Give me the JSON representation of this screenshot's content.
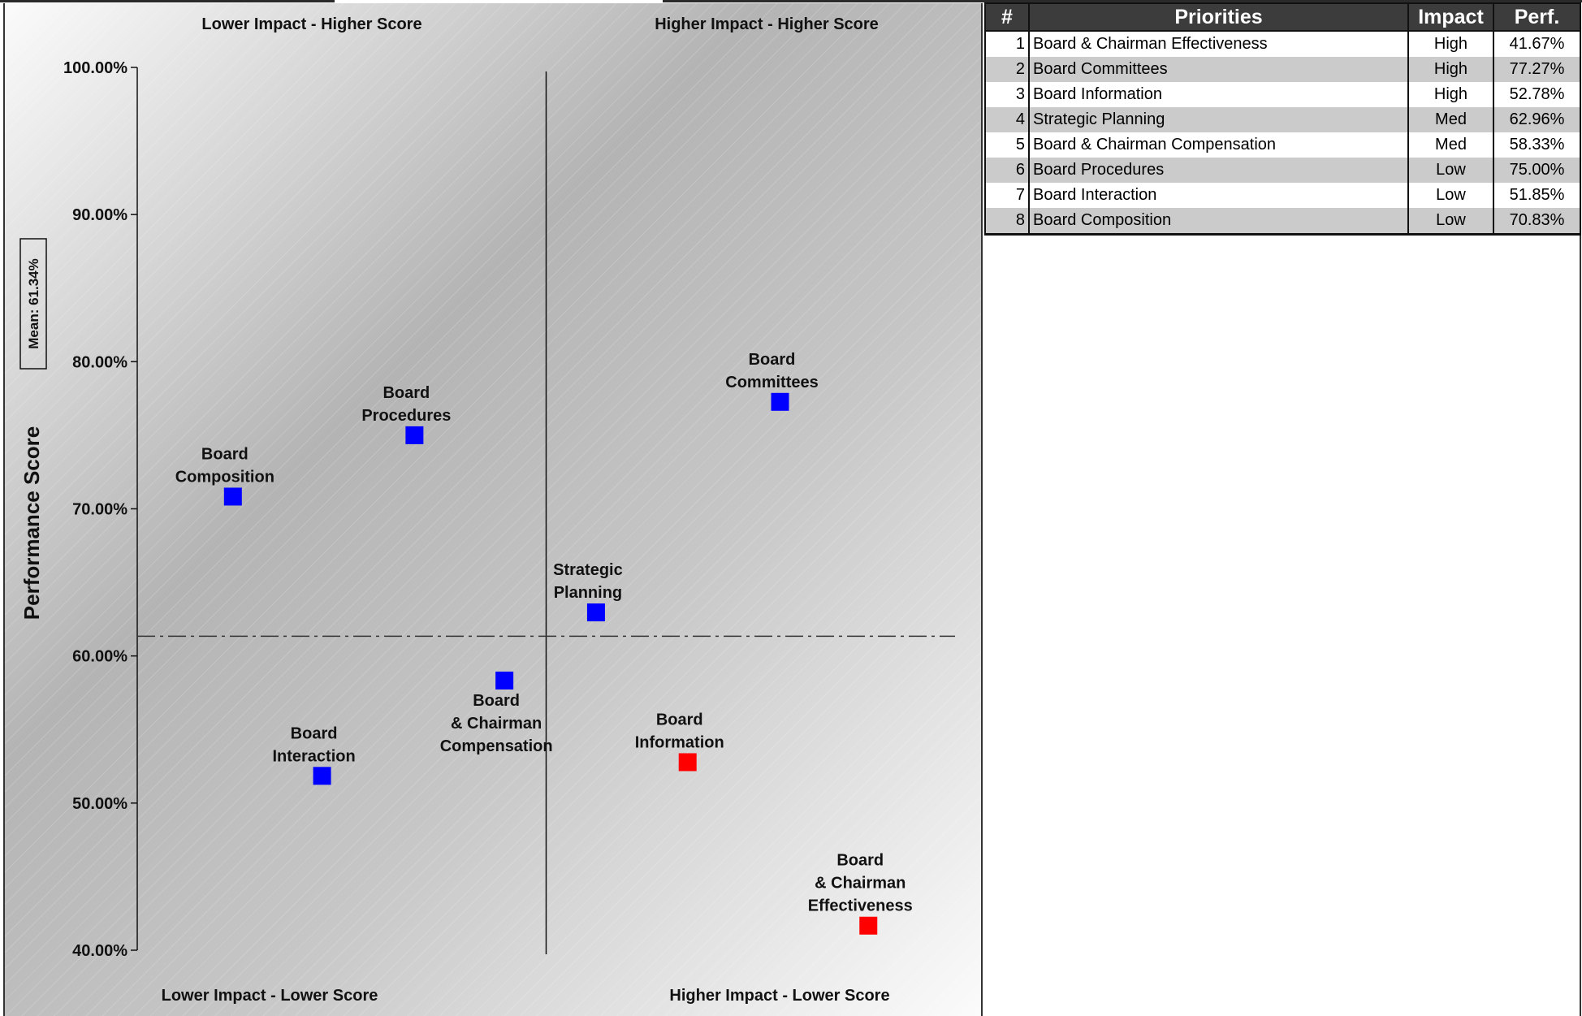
{
  "chart_data": {
    "type": "scatter",
    "ylabel": "Performance Score",
    "ylim": [
      40,
      100
    ],
    "yticks": [
      "100.00%",
      "90.00%",
      "80.00%",
      "70.00%",
      "60.00%",
      "50.00%",
      "40.00%"
    ],
    "mean_label": "Mean: 61.34%",
    "mean_value": 61.34,
    "quadrant_labels": {
      "top_left": "Lower Impact - Higher Score",
      "top_right": "Higher Impact - Higher Score",
      "bottom_left": "Lower Impact - Lower Score",
      "bottom_right": "Higher Impact - Lower Score"
    },
    "x_divider": 50,
    "xlim": [
      0,
      100
    ],
    "points": [
      {
        "label": [
          "Board",
          "Composition"
        ],
        "x": 11.7,
        "y": 70.83,
        "color": "#0000ff"
      },
      {
        "label": [
          "Board",
          "Procedures"
        ],
        "x": 33.9,
        "y": 75.0,
        "color": "#0000ff"
      },
      {
        "label": [
          "Board",
          "Committees"
        ],
        "x": 78.6,
        "y": 77.27,
        "color": "#0000ff"
      },
      {
        "label": [
          "Strategic",
          "Planning"
        ],
        "x": 56.1,
        "y": 62.96,
        "color": "#0000ff"
      },
      {
        "label": [
          "Board",
          "& Chairman",
          "Compensation"
        ],
        "x": 44.9,
        "y": 58.33,
        "color": "#0000ff"
      },
      {
        "label": [
          "Board",
          "Interaction"
        ],
        "x": 22.6,
        "y": 51.85,
        "color": "#0000ff"
      },
      {
        "label": [
          "Board",
          "Information"
        ],
        "x": 67.3,
        "y": 52.78,
        "color": "#ff0000"
      },
      {
        "label": [
          "Board",
          "& Chairman",
          "Effectiveness"
        ],
        "x": 89.4,
        "y": 41.67,
        "color": "#ff0000"
      }
    ]
  },
  "table": {
    "headers": [
      "#",
      "Priorities",
      "Impact",
      "Perf."
    ],
    "rows": [
      {
        "num": "1",
        "priority": "Board & Chairman Effectiveness",
        "impact": "High",
        "perf": "41.67%"
      },
      {
        "num": "2",
        "priority": "Board Committees",
        "impact": "High",
        "perf": "77.27%"
      },
      {
        "num": "3",
        "priority": "Board Information",
        "impact": "High",
        "perf": "52.78%"
      },
      {
        "num": "4",
        "priority": "Strategic Planning",
        "impact": "Med",
        "perf": "62.96%"
      },
      {
        "num": "5",
        "priority": "Board & Chairman Compensation",
        "impact": "Med",
        "perf": "58.33%"
      },
      {
        "num": "6",
        "priority": "Board Procedures",
        "impact": "Low",
        "perf": "75.00%"
      },
      {
        "num": "7",
        "priority": "Board Interaction",
        "impact": "Low",
        "perf": "51.85%"
      },
      {
        "num": "8",
        "priority": "Board Composition",
        "impact": "Low",
        "perf": "70.83%"
      }
    ]
  }
}
